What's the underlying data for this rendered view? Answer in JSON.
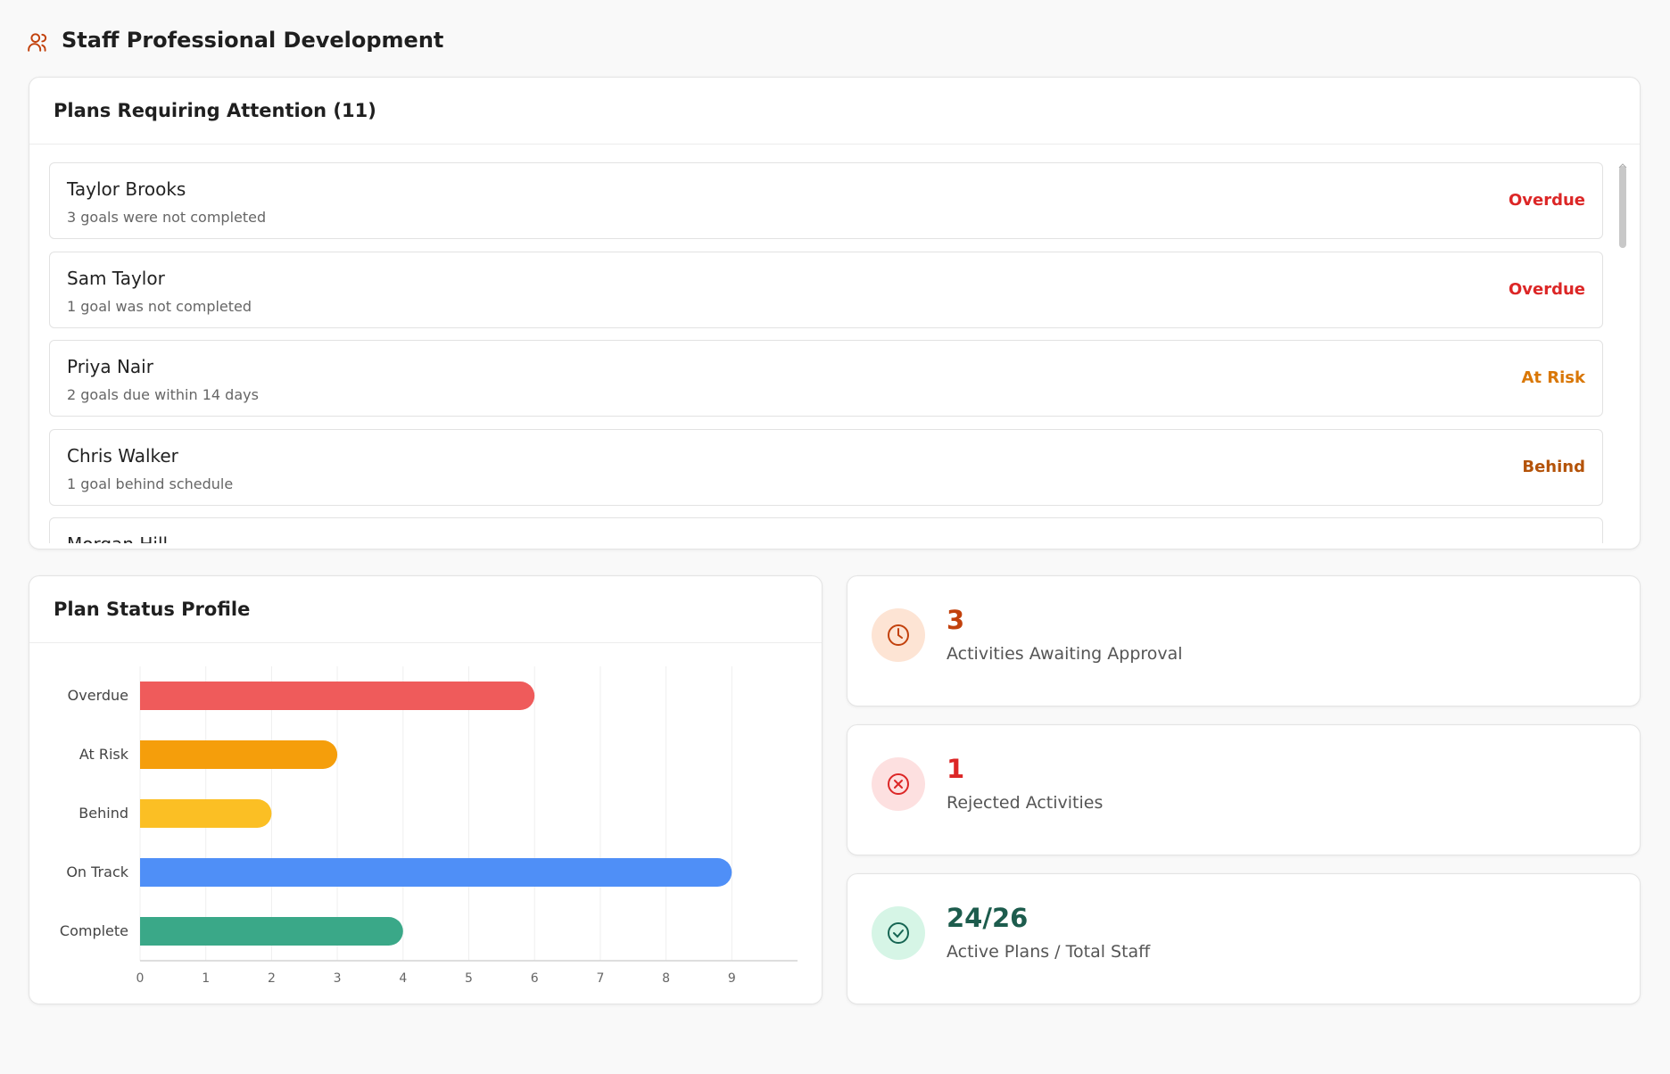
{
  "header": {
    "title": "Staff Professional Development"
  },
  "attention": {
    "title": "Plans Requiring Attention (11)",
    "items": [
      {
        "name": "Taylor Brooks",
        "detail": "3 goals were not completed",
        "status": "Overdue"
      },
      {
        "name": "Sam Taylor",
        "detail": "1 goal was not completed",
        "status": "Overdue"
      },
      {
        "name": "Priya Nair",
        "detail": "2 goals due within 14 days",
        "status": "At Risk"
      },
      {
        "name": "Chris Walker",
        "detail": "1 goal behind schedule",
        "status": "Behind"
      },
      {
        "name": "Morgan Hill"
      }
    ]
  },
  "chart_data": {
    "type": "bar",
    "orientation": "horizontal",
    "title": "Plan Status Profile",
    "categories": [
      "Overdue",
      "At Risk",
      "Behind",
      "On Track",
      "Complete"
    ],
    "values": [
      6,
      3,
      2,
      9,
      4
    ],
    "colors": [
      "#ef5b5b",
      "#f59e0b",
      "#fbbf24",
      "#4f8ff7",
      "#3aa888"
    ],
    "xlim": [
      0,
      10
    ],
    "xticks": [
      0,
      1,
      2,
      3,
      4,
      5,
      6,
      7,
      8,
      9
    ],
    "grid": true
  },
  "stats": [
    {
      "value": "3",
      "label": "Activities Awaiting Approval"
    },
    {
      "value": "1",
      "label": "Rejected Activities"
    },
    {
      "value": "24/26",
      "label": "Active Plans / Total Staff"
    }
  ]
}
